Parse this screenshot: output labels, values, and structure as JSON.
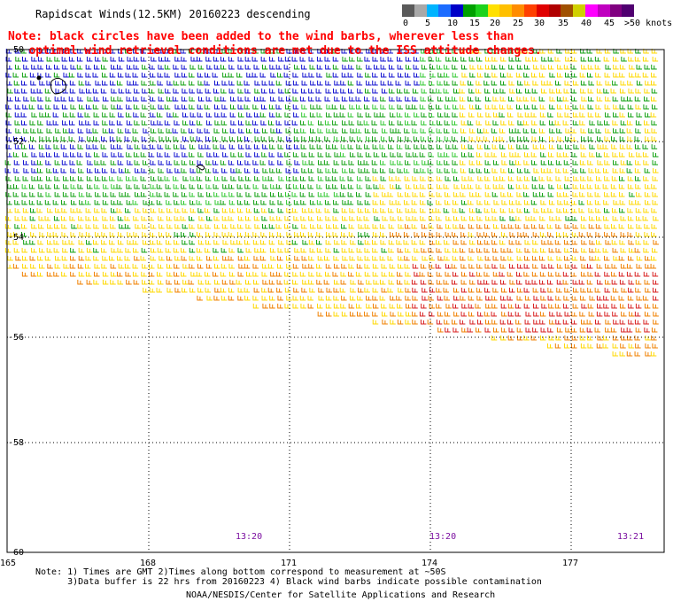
{
  "title": "Rapidscat Winds(12.5KM) 20160223 descending",
  "note_lines": [
    "Note: black circles have been added to the wind barbs, wherever less than",
    "   optimal wind retrieval conditions are met due to the ISS attitude changes."
  ],
  "colorbar": {
    "labels": [
      "0",
      "5",
      "10",
      "15",
      "20",
      "25",
      "30",
      "35",
      "40",
      "45",
      ">50 knots"
    ],
    "colors": [
      "#5a5a5a",
      "#a8a8a8",
      "#00b4ff",
      "#1c6cff",
      "#0000c8",
      "#00a000",
      "#1cd21c",
      "#ffe000",
      "#ffc000",
      "#ff8c00",
      "#ff4000",
      "#e00000",
      "#b00000",
      "#a05000",
      "#d0d000",
      "#ff00ff",
      "#c000c0",
      "#800080",
      "#500070"
    ]
  },
  "axes": {
    "lat_labels": [
      "-50",
      "-52",
      "-54",
      "-56",
      "-58",
      "-60"
    ],
    "lon_labels": [
      "165",
      "168",
      "171",
      "174",
      "177"
    ]
  },
  "times": [
    "13:20",
    "13:20",
    "13:21"
  ],
  "footnotes": [
    "Note: 1) Times are GMT 2)Times along bottom correspond to measurement at ~50S",
    "      3)Data buffer is 22 hrs from 20160223 4) Black wind barbs indicate possible contamination",
    "NOAA/NESDIS/Center for Satellite Applications and Research"
  ]
}
